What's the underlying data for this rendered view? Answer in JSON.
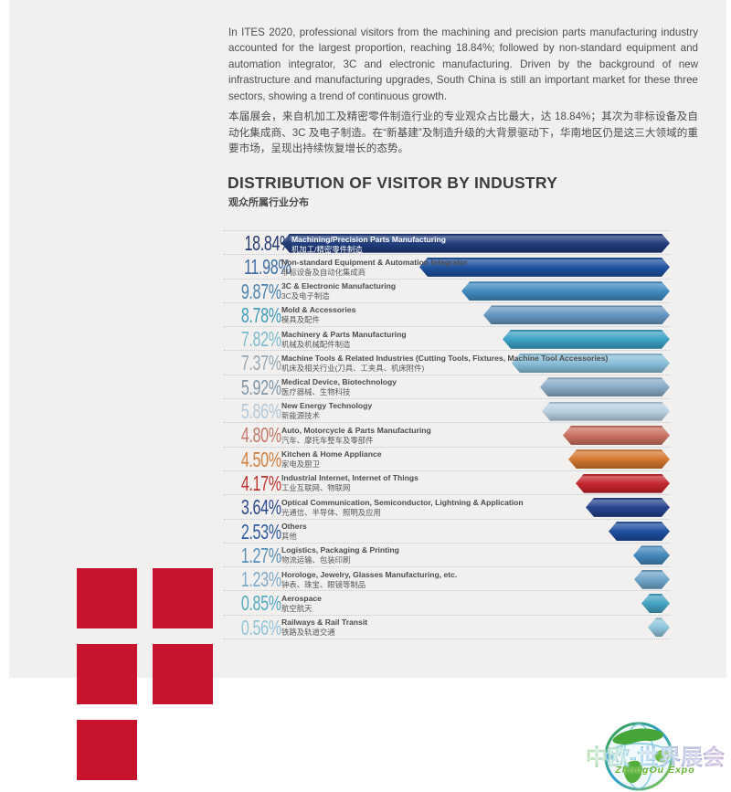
{
  "page": {
    "intro_en": "In ITES 2020, professional visitors from the machining and precision parts manufacturing industry accounted for the largest proportion, reaching 18.84%; followed by non-standard equipment and automation integrator, 3C and electronic manufacturing. Driven by the background of new infrastructure and manufacturing upgrades, South China is still an important market for these three sectors, showing a trend of continuous growth.",
    "intro_zh": "本届展会，来自机加工及精密零件制造行业的专业观众占比最大，达 18.84%；其次为非标设备及自动化集成商、3C 及电子制造。在“新基建”及制造升级的大背景驱动下，华南地区仍是这三大领域的重要市场，呈现出持续恢复增长的态势。",
    "title": "DISTRIBUTION OF VISITOR BY INDUSTRY",
    "subtitle_zh": "观众所属行业分布"
  },
  "chart_data": {
    "type": "bar",
    "orientation": "horizontal",
    "title": "DISTRIBUTION OF VISITOR BY INDUSTRY",
    "title_zh": "观众所属行业分布",
    "unit": "%",
    "value_axis_max": 18.84,
    "bars_right_aligned": true,
    "grid": "dotted-row-separators",
    "rows": [
      {
        "label_en": "Machining/Precision Parts Manufacturing",
        "label_zh": "机加工/精密零件制造",
        "value": 18.84,
        "value_label": "18.84%",
        "bar_color": "#1e3a7a",
        "text_color": "#273a70"
      },
      {
        "label_en": "Non-standard Equipment & Automation Integrator",
        "label_zh": "非标设备及自动化集成商",
        "value": 11.98,
        "value_label": "11.98%",
        "bar_color": "#1d4f9e",
        "text_color": "#3e6da6"
      },
      {
        "label_en": "3C & Electronic Manufacturing",
        "label_zh": "3C及电子制造",
        "value": 9.87,
        "value_label": "9.87%",
        "bar_color": "#3f8ac0",
        "text_color": "#4a82b0"
      },
      {
        "label_en": "Mold & Accessories",
        "label_zh": "模具及配件",
        "value": 8.78,
        "value_label": "8.78%",
        "bar_color": "#6496c0",
        "text_color": "#3f9cbc"
      },
      {
        "label_en": "Machinery & Parts Manufacturing",
        "label_zh": "机械及机械配件制造",
        "value": 7.82,
        "value_label": "7.82%",
        "bar_color": "#3aa0c4",
        "text_color": "#7cbbcf"
      },
      {
        "label_en": "Machine Tools & Related Industries (Cutting Tools, Fixtures, Machine Tool Accessories)",
        "label_zh": "机床及相关行业(刀具、工夹具、机床附件)",
        "value": 7.37,
        "value_label": "7.37%",
        "bar_color": "#88bed9",
        "text_color": "#97a8b6"
      },
      {
        "label_en": "Medical Device, Biotechnology",
        "label_zh": "医疗器械、生物科技",
        "value": 5.92,
        "value_label": "5.92%",
        "bar_color": "#89abc6",
        "text_color": "#8097a9"
      },
      {
        "label_en": "New Energy Technology",
        "label_zh": "新能源技术",
        "value": 5.86,
        "value_label": "5.86%",
        "bar_color": "#b7cfe0",
        "text_color": "#b3c8d8"
      },
      {
        "label_en": "Auto, Motorcycle & Parts Manufacturing",
        "label_zh": "汽车、摩托车整车及零部件",
        "value": 4.8,
        "value_label": "4.80%",
        "bar_color": "#c9705f",
        "text_color": "#c47868"
      },
      {
        "label_en": "Kitchen & Home Appliance",
        "label_zh": "家电及厨卫",
        "value": 4.5,
        "value_label": "4.50%",
        "bar_color": "#d4772e",
        "text_color": "#d28040"
      },
      {
        "label_en": "Industrial Internet, Internet of Things",
        "label_zh": "工业互联网、物联网",
        "value": 4.17,
        "value_label": "4.17%",
        "bar_color": "#c4242b",
        "text_color": "#c03331"
      },
      {
        "label_en": "Optical Communication, Semiconductor, Lightning & Application",
        "label_zh": "光通信、半导体、照明及应用",
        "value": 3.64,
        "value_label": "3.64%",
        "bar_color": "#24418c",
        "text_color": "#2c4a90"
      },
      {
        "label_en": "Others",
        "label_zh": "其他",
        "value": 2.53,
        "value_label": "2.53%",
        "bar_color": "#1d4d9e",
        "text_color": "#2d5aa0"
      },
      {
        "label_en": "Logistics, Packaging & Printing",
        "label_zh": "物流运输、包装印刷",
        "value": 1.27,
        "value_label": "1.27%",
        "bar_color": "#4387bb",
        "text_color": "#5a8fb8"
      },
      {
        "label_en": "Horologe, Jewelry, Glasses Manufacturing, etc.",
        "label_zh": "钟表、珠宝、眼镜等制品",
        "value": 1.23,
        "value_label": "1.23%",
        "bar_color": "#6da3c8",
        "text_color": "#7fa9c9"
      },
      {
        "label_en": "Aerospace",
        "label_zh": "航空航天",
        "value": 0.85,
        "value_label": "0.85%",
        "bar_color": "#43a2c1",
        "text_color": "#57a8c2"
      },
      {
        "label_en": "Railways & Rail Transit",
        "label_zh": "铁路及轨道交通",
        "value": 0.56,
        "value_label": "0.56%",
        "bar_color": "#8fc4dc",
        "text_color": "#92c3d8"
      }
    ]
  },
  "logo": {
    "title_zh": "中欧-世界展会",
    "subtitle_en": "ZhongOu Expo",
    "gradient_colors": [
      "#55b230",
      "#3ba8d6",
      "#3f63ae",
      "#8a4ea6"
    ]
  },
  "decor": {
    "square_color": "#c8132d",
    "square_count": 5,
    "panel_color": "#f1f0ee"
  }
}
